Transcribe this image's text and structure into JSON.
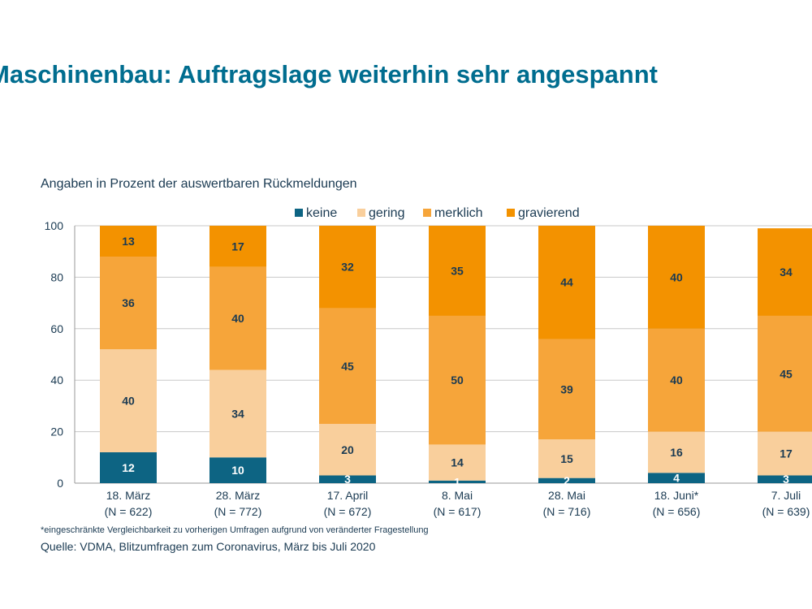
{
  "header": {
    "title": "Maschinenbau: Auftragslage weiterhin sehr angespannt"
  },
  "colors": {
    "keine": "#0d6483",
    "gering": "#f9cf9c",
    "merklich": "#f6a53a",
    "gravierend": "#f39200",
    "title": "#006d8f",
    "text": "#1a3a52",
    "grid": "#c8c8c8"
  },
  "chart_data": {
    "type": "bar",
    "stacked": true,
    "subtitle": "Angaben in Prozent der auswertbaren Rückmeldungen",
    "categories": [
      "18. März",
      "28. März",
      "17. April",
      "8. Mai",
      "28. Mai",
      "18. Juni*",
      "7. Juli"
    ],
    "category_sublabels": [
      "(N = 622)",
      "(N = 772)",
      "(N = 672)",
      "(N = 617)",
      "(N = 716)",
      "(N = 656)",
      "(N = 639)"
    ],
    "series": [
      {
        "name": "keine",
        "values": [
          12,
          10,
          3,
          1,
          2,
          4,
          3
        ]
      },
      {
        "name": "gering",
        "values": [
          40,
          34,
          20,
          14,
          15,
          16,
          17
        ]
      },
      {
        "name": "merklich",
        "values": [
          36,
          40,
          45,
          50,
          39,
          40,
          45
        ]
      },
      {
        "name": "gravierend",
        "values": [
          13,
          17,
          32,
          35,
          44,
          40,
          34
        ]
      }
    ],
    "data_labels": [
      [
        "12",
        "40",
        "36",
        "13"
      ],
      [
        "10",
        "34",
        "40",
        "17"
      ],
      [
        "3",
        "20",
        "45",
        "32"
      ],
      [
        "1",
        "14",
        "50",
        "35"
      ],
      [
        "2",
        "15",
        "39",
        "44"
      ],
      [
        "4",
        "16",
        "40",
        "40"
      ],
      [
        "3",
        "17",
        "45",
        "34"
      ]
    ],
    "ylim": [
      0,
      100
    ],
    "yticks": [
      0,
      20,
      40,
      60,
      80,
      100
    ],
    "grid": true,
    "legend_position": "top"
  },
  "notes": {
    "footnote": "*eingeschränkte Vergleichbarkeit zu vorherigen Umfragen aufgrund von veränderter Fragestellung",
    "source": "Quelle: VDMA, Blitzumfragen zum Coronavirus, März bis Juli 2020"
  }
}
